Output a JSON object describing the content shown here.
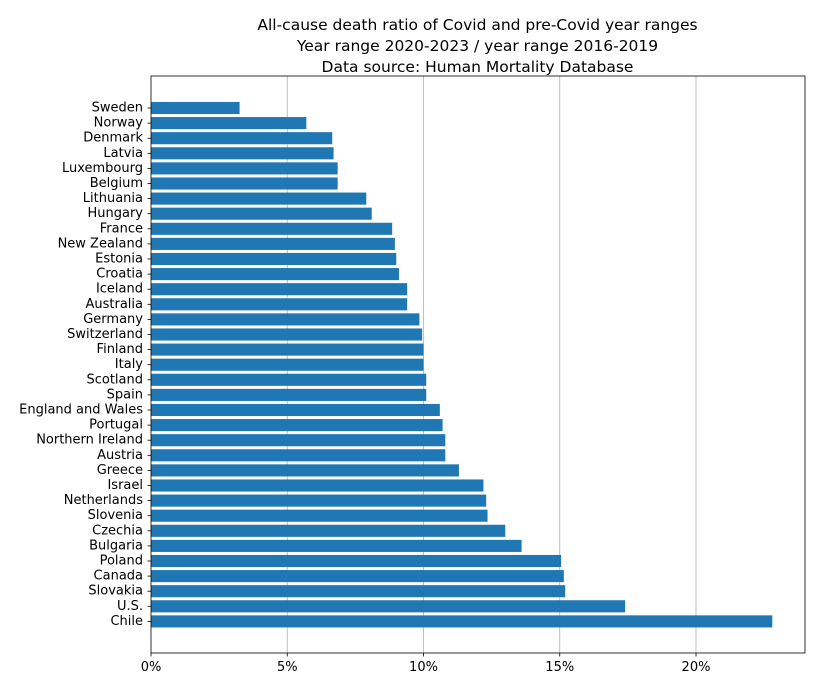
{
  "title_lines": [
    "All-cause death ratio of Covid and pre-Covid year ranges",
    "Year range 2020-2023 / year range 2016-2019",
    "Data source: Human Mortality Database"
  ],
  "chart_data": {
    "type": "bar",
    "orientation": "horizontal",
    "title": "All-cause death ratio of Covid and pre-Covid year ranges / Year range 2020-2023 / year range 2016-2019 / Data source: Human Mortality Database",
    "xlabel": "",
    "ylabel": "",
    "xlim": [
      0,
      0.24
    ],
    "xticks": [
      0,
      0.05,
      0.1,
      0.15,
      0.2
    ],
    "xtick_labels": [
      "0%",
      "5%",
      "10%",
      "15%",
      "20%"
    ],
    "grid": "vertical",
    "bar_color": "#1f77b4",
    "categories": [
      "Sweden",
      "Norway",
      "Denmark",
      "Latvia",
      "Luxembourg",
      "Belgium",
      "Lithuania",
      "Hungary",
      "France",
      "New Zealand",
      "Estonia",
      "Croatia",
      "Iceland",
      "Australia",
      "Germany",
      "Switzerland",
      "Finland",
      "Italy",
      "Scotland",
      "Spain",
      "England and Wales",
      "Portugal",
      "Northern Ireland",
      "Austria",
      "Greece",
      "Israel",
      "Netherlands",
      "Slovenia",
      "Czechia",
      "Bulgaria",
      "Poland",
      "Canada",
      "Slovakia",
      "U.S.",
      "Chile"
    ],
    "values": [
      0.0325,
      0.057,
      0.0665,
      0.067,
      0.0685,
      0.0685,
      0.079,
      0.081,
      0.0885,
      0.0895,
      0.09,
      0.091,
      0.094,
      0.094,
      0.0985,
      0.0995,
      0.1,
      0.1,
      0.101,
      0.101,
      0.106,
      0.107,
      0.108,
      0.108,
      0.113,
      0.122,
      0.123,
      0.1235,
      0.13,
      0.136,
      0.1505,
      0.1515,
      0.152,
      0.174,
      0.228
    ]
  }
}
